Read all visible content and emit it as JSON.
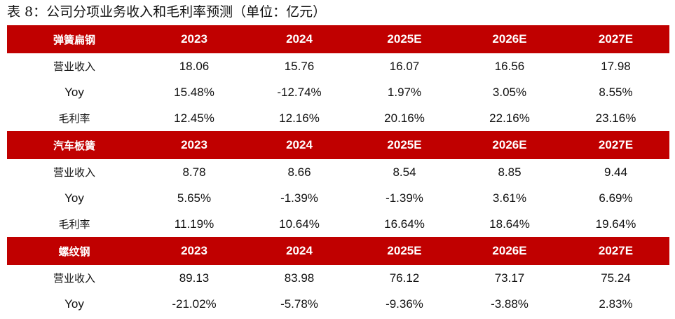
{
  "title": "表 8：公司分项业务收入和毛利率预测（单位：亿元）",
  "segments": [
    {
      "name": "弹簧扁钢",
      "years": [
        "2023",
        "2024",
        "2025E",
        "2026E",
        "2027E"
      ],
      "rows": [
        {
          "metric": "营业收入",
          "values": [
            "18.06",
            "15.76",
            "16.07",
            "16.56",
            "17.98"
          ]
        },
        {
          "metric": "Yoy",
          "values": [
            "15.48%",
            "-12.74%",
            "1.97%",
            "3.05%",
            "8.55%"
          ]
        },
        {
          "metric": "毛利率",
          "values": [
            "12.45%",
            "12.16%",
            "20.16%",
            "22.16%",
            "23.16%"
          ]
        }
      ]
    },
    {
      "name": "汽车板簧",
      "years": [
        "2023",
        "2024",
        "2025E",
        "2026E",
        "2027E"
      ],
      "rows": [
        {
          "metric": "营业收入",
          "values": [
            "8.78",
            "8.66",
            "8.54",
            "8.85",
            "9.44"
          ]
        },
        {
          "metric": "Yoy",
          "values": [
            "5.65%",
            "-1.39%",
            "-1.39%",
            "3.61%",
            "6.69%"
          ]
        },
        {
          "metric": "毛利率",
          "values": [
            "11.19%",
            "10.64%",
            "16.64%",
            "18.64%",
            "19.64%"
          ]
        }
      ]
    },
    {
      "name": "螺纹钢",
      "years": [
        "2023",
        "2024",
        "2025E",
        "2026E",
        "2027E"
      ],
      "rows": [
        {
          "metric": "营业收入",
          "values": [
            "89.13",
            "83.98",
            "76.12",
            "73.17",
            "75.24"
          ]
        },
        {
          "metric": "Yoy",
          "values": [
            "-21.02%",
            "-5.78%",
            "-9.36%",
            "-3.88%",
            "2.83%"
          ]
        }
      ]
    }
  ]
}
